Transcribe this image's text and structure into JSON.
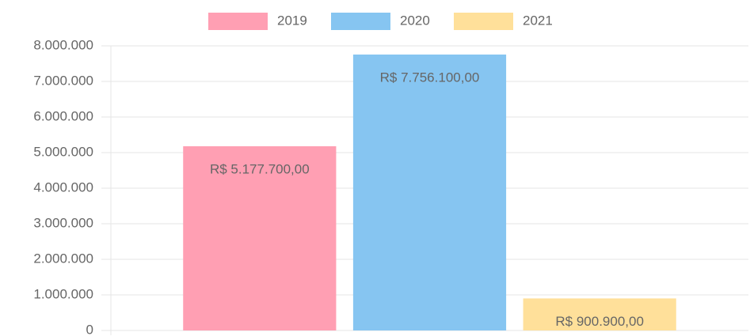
{
  "chart_data": {
    "type": "bar",
    "categories": [
      null
    ],
    "series": [
      {
        "name": "2019",
        "color": "#ff9fb3",
        "values": [
          5177700
        ],
        "value_labels": [
          "R$ 5.177.700,00"
        ]
      },
      {
        "name": "2020",
        "color": "#86c5f1",
        "values": [
          7756100
        ],
        "value_labels": [
          "R$ 7.756.100,00"
        ]
      },
      {
        "name": "2021",
        "color": "#ffe09a",
        "values": [
          900900
        ],
        "value_labels": [
          "R$ 900.900,00"
        ]
      }
    ],
    "ylim": [
      0,
      8000000
    ],
    "yticks": [
      0,
      {
        "value": 1000000,
        "label": "1.000.000"
      },
      {
        "value": 2000000,
        "label": "2.000.000"
      },
      {
        "value": 3000000,
        "label": "3.000.000"
      },
      {
        "value": 4000000,
        "label": "4.000.000"
      },
      {
        "value": 5000000,
        "label": "5.000.000"
      },
      {
        "value": 6000000,
        "label": "6.000.000"
      },
      {
        "value": 7000000,
        "label": "7.000.000"
      },
      {
        "value": 8000000,
        "label": "8.000.000"
      }
    ],
    "grid": true,
    "legend": "top"
  }
}
